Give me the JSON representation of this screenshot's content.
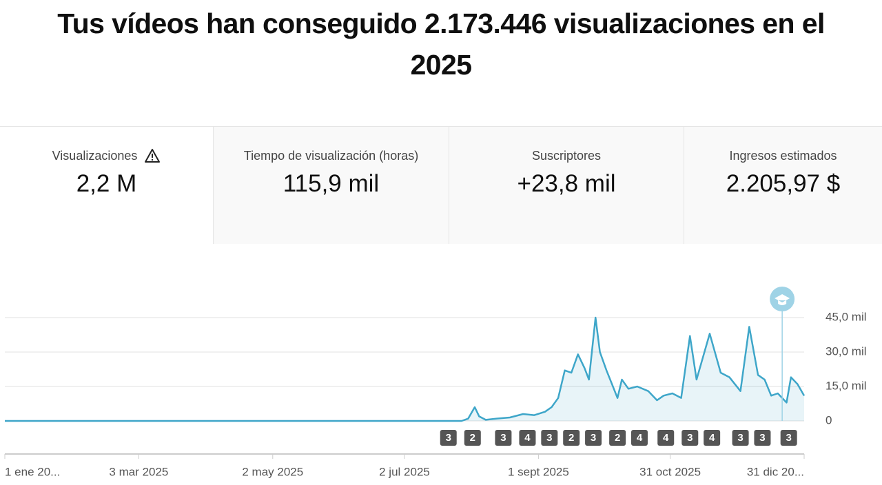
{
  "header": {
    "title": "Tus vídeos han conseguido 2.173.446 visualizaciones en el 2025"
  },
  "metrics": [
    {
      "label": "Visualizaciones",
      "value": "2,2 M"
    },
    {
      "label": "Tiempo de visualización (horas)",
      "value": "115,9 mil"
    },
    {
      "label": "Suscriptores",
      "value": "+23,8 mil"
    },
    {
      "label": "Ingresos estimados",
      "value": "2.205,97 $"
    }
  ],
  "chart_data": {
    "type": "line",
    "x": [
      0,
      208,
      211,
      214,
      216,
      219,
      224,
      230,
      236,
      241,
      246,
      249,
      252,
      255,
      258,
      261,
      264,
      266,
      269,
      271,
      274,
      279,
      281,
      284,
      288,
      293,
      297,
      300,
      304,
      308,
      312,
      315,
      321,
      326,
      330,
      335,
      339,
      343,
      346,
      349,
      352,
      356,
      358,
      361,
      364
    ],
    "series": [
      {
        "name": "Visualizaciones",
        "color": "#3ea6c9",
        "values": [
          0,
          0,
          1,
          6,
          2,
          0.5,
          1,
          1.5,
          3,
          2.5,
          4,
          6,
          10,
          22,
          21,
          29,
          23,
          18,
          45,
          30,
          22,
          10,
          18,
          14,
          15,
          13,
          9,
          11,
          12,
          10,
          37,
          18,
          38,
          21,
          19,
          13,
          41,
          20,
          18,
          11,
          12,
          8,
          19,
          16,
          11
        ]
      }
    ],
    "xlim": [
      0,
      364
    ],
    "xticks": [
      {
        "value": 0,
        "label": "1 ene 20..."
      },
      {
        "value": 61,
        "label": "3 mar 2025"
      },
      {
        "value": 122,
        "label": "2 may 2025"
      },
      {
        "value": 182,
        "label": "2 jul 2025"
      },
      {
        "value": 243,
        "label": "1 sept 2025"
      },
      {
        "value": 303,
        "label": "31 oct 2025"
      },
      {
        "value": 364,
        "label": "31 dic 20..."
      }
    ],
    "ylim": [
      0,
      45
    ],
    "yticks": [
      0,
      {
        "value": 15,
        "label": "15,0 mil"
      },
      {
        "value": 30,
        "label": "30,0 mil"
      },
      {
        "value": 45,
        "label": "45,0 mil"
      }
    ],
    "grid": true,
    "markers": {
      "x": [
        202,
        213,
        227,
        238,
        248,
        258,
        268,
        279,
        289,
        301,
        312,
        322,
        335,
        345,
        357
      ],
      "counts": [
        3,
        2,
        3,
        4,
        3,
        2,
        3,
        2,
        4,
        4,
        3,
        4,
        3,
        3,
        3
      ]
    },
    "highlight_x": 354
  }
}
